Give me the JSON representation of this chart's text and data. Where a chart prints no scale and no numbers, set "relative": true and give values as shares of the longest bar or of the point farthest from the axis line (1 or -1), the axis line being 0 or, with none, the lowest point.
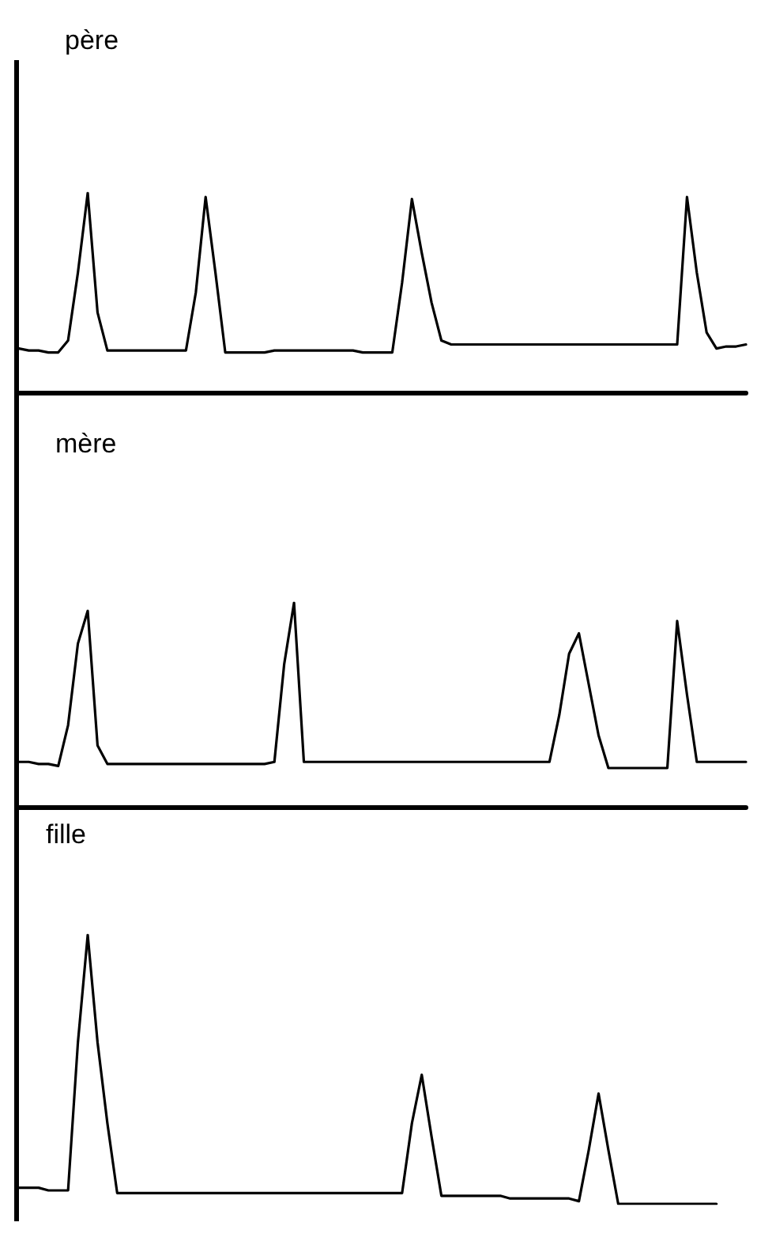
{
  "chart_data": [
    {
      "type": "line",
      "title": "père",
      "relative": true,
      "categories": [
        null,
        null,
        null,
        null,
        null,
        null,
        null,
        null,
        null,
        null,
        null,
        null,
        null,
        null,
        null,
        null,
        null,
        null,
        null,
        null,
        null,
        null,
        null,
        null,
        null,
        null,
        null,
        null,
        null,
        null,
        null,
        null,
        null,
        null,
        null,
        null,
        null,
        null,
        null,
        null,
        null,
        null,
        null,
        null,
        null,
        null,
        null,
        null,
        null,
        null,
        null,
        null,
        null,
        null,
        null,
        null,
        null,
        null,
        null,
        null,
        null,
        null,
        null,
        null,
        null,
        null,
        null,
        null,
        null,
        null,
        null,
        null,
        null,
        null,
        null
      ],
      "series": [
        {
          "color": "#000000",
          "values": [
            0.22,
            0.21,
            0.21,
            0.2,
            0.2,
            0.26,
            0.6,
            1,
            0.4,
            0.21,
            0.21,
            0.21,
            0.21,
            0.21,
            0.21,
            0.21,
            0.21,
            0.21,
            0.5,
            0.98,
            0.6,
            0.2,
            0.2,
            0.2,
            0.2,
            0.2,
            0.21,
            0.21,
            0.21,
            0.21,
            0.21,
            0.21,
            0.21,
            0.21,
            0.21,
            0.2,
            0.2,
            0.2,
            0.2,
            0.55,
            0.97,
            0.7,
            0.45,
            0.26,
            0.24,
            0.24,
            0.24,
            0.24,
            0.24,
            0.24,
            0.24,
            0.24,
            0.24,
            0.24,
            0.24,
            0.24,
            0.24,
            0.24,
            0.24,
            0.24,
            0.24,
            0.24,
            0.24,
            0.24,
            0.24,
            0.24,
            0.24,
            0.24,
            0.98,
            0.6,
            0.3,
            0.22,
            0.23,
            0.23,
            0.24
          ]
        }
      ]
    },
    {
      "type": "line",
      "title": "mère",
      "relative": true,
      "categories": [
        null,
        null,
        null,
        null,
        null,
        null,
        null,
        null,
        null,
        null,
        null,
        null,
        null,
        null,
        null,
        null,
        null,
        null,
        null,
        null,
        null,
        null,
        null,
        null,
        null,
        null,
        null,
        null,
        null,
        null,
        null,
        null,
        null,
        null,
        null,
        null,
        null,
        null,
        null,
        null,
        null,
        null,
        null,
        null,
        null,
        null,
        null,
        null,
        null,
        null,
        null,
        null,
        null,
        null,
        null,
        null,
        null,
        null,
        null,
        null,
        null,
        null,
        null,
        null,
        null,
        null,
        null,
        null,
        null,
        null,
        null,
        null,
        null,
        null,
        null
      ],
      "series": [
        {
          "color": "#000000",
          "values": [
            0.22,
            0.22,
            0.21,
            0.21,
            0.2,
            0.4,
            0.8,
            0.96,
            0.3,
            0.21,
            0.21,
            0.21,
            0.21,
            0.21,
            0.21,
            0.21,
            0.21,
            0.21,
            0.21,
            0.21,
            0.21,
            0.21,
            0.21,
            0.21,
            0.21,
            0.21,
            0.22,
            0.7,
            1,
            0.22,
            0.22,
            0.22,
            0.22,
            0.22,
            0.22,
            0.22,
            0.22,
            0.22,
            0.22,
            0.22,
            0.22,
            0.22,
            0.22,
            0.22,
            0.22,
            0.22,
            0.22,
            0.22,
            0.22,
            0.22,
            0.22,
            0.22,
            0.22,
            0.22,
            0.22,
            0.45,
            0.75,
            0.85,
            0.6,
            0.35,
            0.19,
            0.19,
            0.19,
            0.19,
            0.19,
            0.19,
            0.19,
            0.91,
            0.55,
            0.22,
            0.22,
            0.22,
            0.22,
            0.22,
            0.22
          ]
        }
      ]
    },
    {
      "type": "line",
      "title": "fille",
      "relative": true,
      "categories": [
        null,
        null,
        null,
        null,
        null,
        null,
        null,
        null,
        null,
        null,
        null,
        null,
        null,
        null,
        null,
        null,
        null,
        null,
        null,
        null,
        null,
        null,
        null,
        null,
        null,
        null,
        null,
        null,
        null,
        null,
        null,
        null,
        null,
        null,
        null,
        null,
        null,
        null,
        null,
        null,
        null,
        null,
        null,
        null,
        null,
        null,
        null,
        null,
        null,
        null,
        null,
        null,
        null,
        null,
        null,
        null,
        null,
        null,
        null,
        null,
        null,
        null,
        null,
        null,
        null,
        null,
        null,
        null,
        null,
        null,
        null,
        null,
        null,
        null,
        null
      ],
      "series": [
        {
          "color": "#000000",
          "values": [
            0.06,
            0.06,
            0.06,
            0.05,
            0.05,
            0.05,
            0.6,
            1,
            0.6,
            0.3,
            0.04,
            0.04,
            0.04,
            0.04,
            0.04,
            0.04,
            0.04,
            0.04,
            0.04,
            0.04,
            0.04,
            0.04,
            0.04,
            0.04,
            0.04,
            0.04,
            0.04,
            0.04,
            0.04,
            0.04,
            0.04,
            0.04,
            0.04,
            0.04,
            0.04,
            0.04,
            0.04,
            0.04,
            0.04,
            0.04,
            0.3,
            0.48,
            0.25,
            0.03,
            0.03,
            0.03,
            0.03,
            0.03,
            0.03,
            0.03,
            0.02,
            0.02,
            0.02,
            0.02,
            0.02,
            0.02,
            0.02,
            0.01,
            0.2,
            0.41,
            0.2,
            0,
            0,
            0,
            0,
            0,
            0,
            0,
            0,
            0,
            0,
            0,
            null,
            null,
            null
          ]
        }
      ]
    }
  ]
}
